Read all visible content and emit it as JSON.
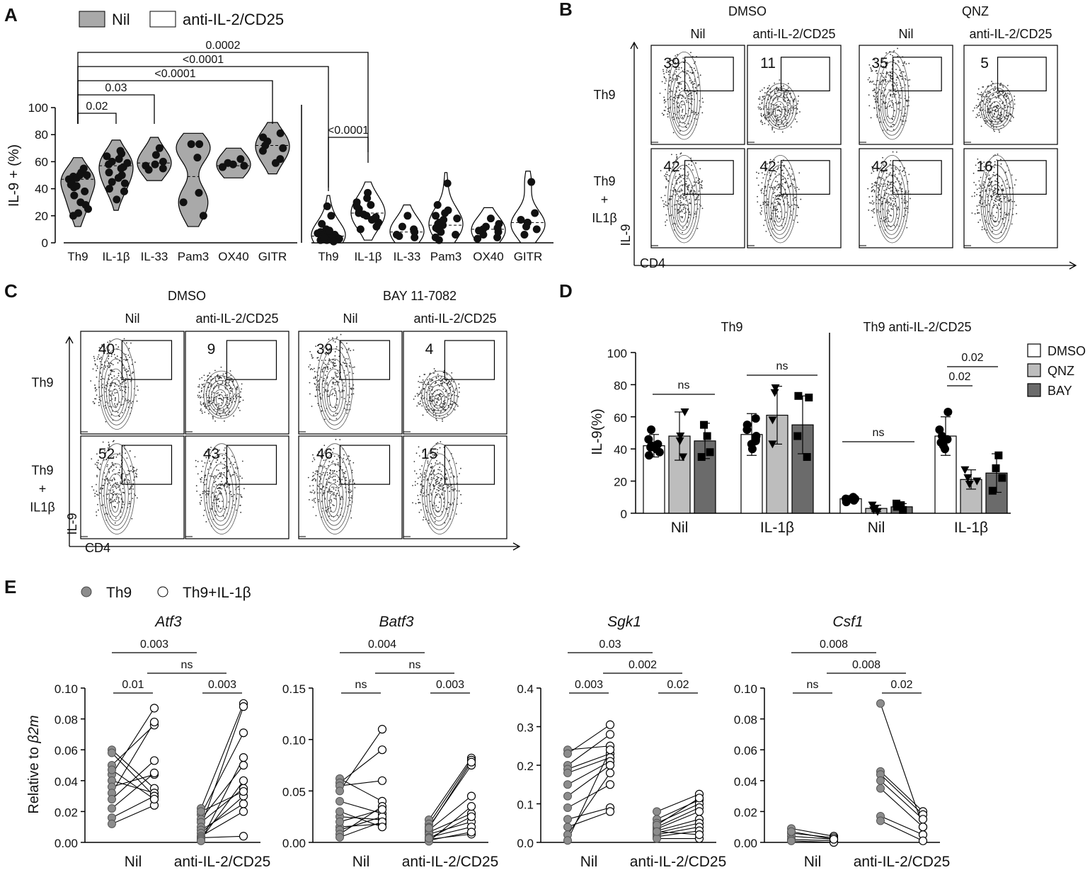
{
  "panels": {
    "A": {
      "label": "A",
      "legend": [
        {
          "name": "Nil",
          "fill": "#a9a9a9"
        },
        {
          "name": "anti-IL-2/CD25",
          "fill": "#ffffff"
        }
      ],
      "ylabel": "IL-9 + (%)",
      "ylim": [
        0,
        100
      ],
      "yticks": [
        "0",
        "20",
        "40",
        "60",
        "80",
        "100"
      ],
      "categories": [
        "Th9",
        "IL-1β",
        "IL-33",
        "Pam3",
        "OX40",
        "GITR"
      ]
    },
    "B": {
      "label": "B",
      "groups": [
        "DMSO",
        "QNZ"
      ],
      "columns": [
        "Nil",
        "anti-IL-2/CD25",
        "Nil",
        "anti-IL-2/CD25"
      ],
      "rows": [
        [
          "Th9"
        ],
        [
          "Th9",
          "+",
          "IL1β"
        ]
      ],
      "values": [
        [
          "39",
          "11",
          "35",
          "5"
        ],
        [
          "42",
          "42",
          "42",
          "16"
        ]
      ],
      "xaxis": "CD4",
      "yaxis": "IL-9"
    },
    "C": {
      "label": "C",
      "groups": [
        "DMSO",
        "BAY 11-7082"
      ],
      "columns": [
        "Nil",
        "anti-IL-2/CD25",
        "Nil",
        "anti-IL-2/CD25"
      ],
      "rows": [
        [
          "Th9"
        ],
        [
          "Th9",
          "+",
          "IL1β"
        ]
      ],
      "values": [
        [
          "40",
          "9",
          "39",
          "4"
        ],
        [
          "52",
          "43",
          "46",
          "15"
        ]
      ],
      "xaxis": "CD4",
      "yaxis": "IL-9"
    },
    "D": {
      "label": "D",
      "groups": [
        "Th9",
        "Th9 anti-IL-2/CD25"
      ],
      "ylabel": "IL-9(%)",
      "yticks": [
        "0",
        "20",
        "40",
        "60",
        "80",
        "100"
      ],
      "legend": [
        {
          "name": "DMSO",
          "fill": "#ffffff"
        },
        {
          "name": "QNZ",
          "fill": "#bdbdbd"
        },
        {
          "name": "BAY",
          "fill": "#6b6b6b"
        }
      ],
      "categories": [
        "Nil",
        "IL-1β",
        "Nil",
        "IL-1β"
      ]
    },
    "E": {
      "label": "E",
      "legend": [
        {
          "name": "Th9",
          "fill": "#8c8c8c"
        },
        {
          "name": "Th9+IL-1β",
          "fill": "#ffffff"
        }
      ],
      "ylabel": "Relative to β2m",
      "ylabel_plain": "Relative to ",
      "ylabel_italic": "β2m",
      "categories": [
        "Nil",
        "anti-IL-2/CD25"
      ]
    }
  },
  "chart_data": [
    {
      "id": "A",
      "type": "violin-scatter",
      "title": "",
      "ylabel": "IL-9 + (%)",
      "ylim": [
        0,
        100
      ],
      "series": [
        {
          "name": "Nil",
          "categories": [
            "Th9",
            "IL-1β",
            "IL-33",
            "Pam3",
            "OX40",
            "GITR"
          ],
          "median": [
            47,
            57,
            59,
            49,
            57,
            72
          ],
          "points": [
            [
              52,
              50,
              49,
              47,
              45,
              55,
              43,
              41,
              38,
              35,
              30,
              28,
              25,
              22,
              20,
              48,
              42,
              50
            ],
            [
              68,
              66,
              64,
              60,
              58,
              56,
              55,
              52,
              48,
              45,
              40,
              38,
              32,
              62,
              59,
              50,
              44
            ],
            [
              70,
              65,
              60,
              58,
              57,
              55,
              54
            ],
            [
              73,
              73,
              63,
              37,
              30,
              20
            ],
            [
              62,
              59,
              58,
              57,
              56,
              56
            ],
            [
              81,
              78,
              75,
              72,
              70,
              68,
              62,
              59
            ]
          ]
        },
        {
          "name": "anti-IL-2/CD25",
          "categories": [
            "Th9",
            "IL-1β",
            "IL-33",
            "Pam3",
            "OX40",
            "GITR"
          ],
          "median": [
            5,
            22,
            8,
            13,
            10,
            15
          ],
          "points": [
            [
              27,
              20,
              14,
              10,
              8,
              7,
              6,
              5,
              4,
              3,
              3,
              2,
              2,
              1,
              6,
              9,
              4
            ],
            [
              37,
              33,
              30,
              28,
              25,
              22,
              21,
              20,
              17,
              15,
              12,
              10,
              27,
              19
            ],
            [
              20,
              12,
              10,
              8,
              6,
              5,
              4
            ],
            [
              44,
              28,
              24,
              20,
              18,
              15,
              13,
              10,
              8,
              6,
              4,
              2,
              14,
              11,
              17,
              22
            ],
            [
              18,
              14,
              12,
              10,
              8,
              6,
              4,
              3,
              9,
              11
            ],
            [
              45,
              22,
              17,
              15,
              10,
              6,
              12
            ]
          ]
        }
      ],
      "comparisons": [
        {
          "from": "Th9 (Nil)",
          "to": "IL-1β (Nil)",
          "p": "0.02"
        },
        {
          "from": "Th9 (Nil)",
          "to": "IL-33 (Nil)",
          "p": "0.03"
        },
        {
          "from": "Th9 (Nil)",
          "to": "GITR (Nil)",
          "p": "<0.0001"
        },
        {
          "from": "Th9 (Nil)",
          "to": "Th9 (anti-IL-2/CD25)",
          "p": "<0.0001"
        },
        {
          "from": "Th9 (Nil)",
          "to": "IL-1β (anti-IL-2/CD25)",
          "p": "0.0002"
        },
        {
          "from": "Th9 (anti-IL-2/CD25)",
          "to": "IL-1β (anti-IL-2/CD25)",
          "p": "<0.0001"
        }
      ]
    },
    {
      "id": "D",
      "type": "bar",
      "ylabel": "IL-9(%)",
      "ylim": [
        0,
        100
      ],
      "categories": [
        "Th9 Nil",
        "Th9 IL-1β",
        "Th9 anti-IL-2/CD25 Nil",
        "Th9 anti-IL-2/CD25 IL-1β"
      ],
      "series": [
        {
          "name": "DMSO",
          "values": [
            42,
            49,
            9,
            48
          ],
          "sd": [
            7,
            13,
            2,
            12
          ],
          "points": [
            [
              52,
              46,
              43,
              42,
              40,
              38,
              36,
              41
            ],
            [
              59,
              55,
              52,
              48,
              46,
              45,
              43,
              40
            ],
            [
              10,
              9,
              8,
              8,
              7,
              9
            ],
            [
              63,
              52,
              48,
              46,
              44,
              42,
              40
            ]
          ]
        },
        {
          "name": "QNZ",
          "values": [
            48,
            61,
            3,
            21
          ],
          "sd": [
            15,
            18,
            2,
            6
          ],
          "points": [
            [
              63,
              48,
              45,
              35
            ],
            [
              78,
              75,
              58,
              43
            ],
            [
              5,
              3,
              2,
              1
            ],
            [
              27,
              22,
              20,
              18
            ]
          ]
        },
        {
          "name": "BAY",
          "values": [
            45,
            55,
            4,
            25
          ],
          "sd": [
            11,
            18,
            2,
            12
          ],
          "points": [
            [
              55,
              48,
              38,
              35
            ],
            [
              73,
              72,
              48,
              35
            ],
            [
              6,
              5,
              4,
              2
            ],
            [
              36,
              28,
              22,
              14
            ]
          ]
        }
      ],
      "comparisons": [
        {
          "group": "Th9 Nil",
          "p": "ns"
        },
        {
          "group": "Th9 IL-1β",
          "p": "ns"
        },
        {
          "group": "Th9 anti-IL-2/CD25 Nil",
          "p": "ns"
        },
        {
          "group": "Th9 anti-IL-2/CD25 IL-1β",
          "pair": "DMSO vs QNZ",
          "p": "0.02"
        },
        {
          "group": "Th9 anti-IL-2/CD25 IL-1β",
          "pair": "DMSO vs BAY",
          "p": "0.02"
        }
      ]
    },
    {
      "id": "E1",
      "type": "paired-line",
      "title": "Atf3",
      "ylim": [
        0,
        0.1
      ],
      "yticks": [
        "0.00",
        "0.02",
        "0.04",
        "0.06",
        "0.08",
        "0.10"
      ],
      "categories": [
        "Nil",
        "anti-IL-2/CD25"
      ],
      "pairs": [
        [
          [
            0.06,
            0.035
          ],
          [
            0.058,
            0.03
          ],
          [
            0.05,
            0.076
          ],
          [
            0.044,
            0.087
          ],
          [
            0.04,
            0.032
          ],
          [
            0.036,
            0.044
          ],
          [
            0.032,
            0.078
          ],
          [
            0.028,
            0.053
          ],
          [
            0.022,
            0.045
          ],
          [
            0.016,
            0.03
          ],
          [
            0.012,
            0.024
          ],
          [
            0.047,
            0.028
          ]
        ],
        [
          [
            0.022,
            0.09
          ],
          [
            0.018,
            0.071
          ],
          [
            0.015,
            0.05
          ],
          [
            0.013,
            0.035
          ],
          [
            0.01,
            0.088
          ],
          [
            0.008,
            0.025
          ],
          [
            0.006,
            0.03
          ],
          [
            0.004,
            0.02
          ],
          [
            0.003,
            0.004
          ],
          [
            0.002,
            0.04
          ],
          [
            0.001,
            0.055
          ],
          [
            0.02,
            0.033
          ]
        ]
      ],
      "comparisons": [
        {
          "label": "Nil",
          "p": "0.01"
        },
        {
          "label": "anti-IL-2/CD25",
          "p": "0.003"
        },
        {
          "label": "Th9 Nil vs Th9 anti",
          "p": "0.003"
        },
        {
          "label": "IL-1β Nil vs IL-1β anti",
          "p": "ns"
        }
      ]
    },
    {
      "id": "E2",
      "type": "paired-line",
      "title": "Batf3",
      "ylim": [
        0,
        0.15
      ],
      "yticks": [
        "0.00",
        "0.05",
        "0.10",
        "0.15"
      ],
      "categories": [
        "Nil",
        "anti-IL-2/CD25"
      ],
      "pairs": [
        [
          [
            0.062,
            0.04
          ],
          [
            0.058,
            0.09
          ],
          [
            0.055,
            0.06
          ],
          [
            0.05,
            0.11
          ],
          [
            0.04,
            0.028
          ],
          [
            0.025,
            0.022
          ],
          [
            0.015,
            0.018
          ],
          [
            0.012,
            0.025
          ],
          [
            0.008,
            0.035
          ],
          [
            0.005,
            0.02
          ],
          [
            0.02,
            0.032
          ],
          [
            0.03,
            0.015
          ]
        ],
        [
          [
            0.022,
            0.082
          ],
          [
            0.018,
            0.08
          ],
          [
            0.015,
            0.075
          ],
          [
            0.012,
            0.045
          ],
          [
            0.01,
            0.028
          ],
          [
            0.008,
            0.02
          ],
          [
            0.005,
            0.015
          ],
          [
            0.003,
            0.008
          ],
          [
            0.002,
            0.01
          ],
          [
            0.001,
            0.035
          ],
          [
            0.014,
            0.078
          ],
          [
            0.004,
            0.025
          ]
        ]
      ],
      "comparisons": [
        {
          "label": "Nil",
          "p": "ns"
        },
        {
          "label": "anti-IL-2/CD25",
          "p": "0.003"
        },
        {
          "label": "Th9 Nil vs Th9 anti",
          "p": "0.004"
        },
        {
          "label": "IL-1β Nil vs IL-1β anti",
          "p": "ns"
        }
      ]
    },
    {
      "id": "E3",
      "type": "paired-line",
      "title": "Sgk1",
      "ylim": [
        0,
        0.4
      ],
      "yticks": [
        "0.0",
        "0.1",
        "0.2",
        "0.3",
        "0.4"
      ],
      "categories": [
        "Nil",
        "anti-IL-2/CD25"
      ],
      "pairs": [
        [
          [
            0.24,
            0.25
          ],
          [
            0.23,
            0.305
          ],
          [
            0.2,
            0.28
          ],
          [
            0.19,
            0.23
          ],
          [
            0.18,
            0.22
          ],
          [
            0.15,
            0.21
          ],
          [
            0.12,
            0.2
          ],
          [
            0.09,
            0.15
          ],
          [
            0.06,
            0.09
          ],
          [
            0.04,
            0.08
          ],
          [
            0.02,
            0.18
          ],
          [
            0.005,
            0.24
          ]
        ],
        [
          [
            0.08,
            0.125
          ],
          [
            0.06,
            0.11
          ],
          [
            0.05,
            0.1
          ],
          [
            0.04,
            0.09
          ],
          [
            0.035,
            0.08
          ],
          [
            0.03,
            0.06
          ],
          [
            0.025,
            0.05
          ],
          [
            0.02,
            0.04
          ],
          [
            0.015,
            0.03
          ],
          [
            0.01,
            0.01
          ],
          [
            0.045,
            0.115
          ],
          [
            0.028,
            0.02
          ]
        ]
      ],
      "comparisons": [
        {
          "label": "Nil",
          "p": "0.003"
        },
        {
          "label": "anti-IL-2/CD25",
          "p": "0.02"
        },
        {
          "label": "Th9 Nil vs Th9 anti",
          "p": "0.03"
        },
        {
          "label": "IL-1β Nil vs IL-1β anti",
          "p": "0.002"
        }
      ]
    },
    {
      "id": "E4",
      "type": "paired-line",
      "title": "Csf1",
      "ylim": [
        0,
        0.1
      ],
      "yticks": [
        "0.00",
        "0.02",
        "0.04",
        "0.06",
        "0.08",
        "0.10"
      ],
      "categories": [
        "Nil",
        "anti-IL-2/CD25"
      ],
      "pairs": [
        [
          [
            0.009,
            0.004
          ],
          [
            0.006,
            0.003
          ],
          [
            0.004,
            0.002
          ],
          [
            0.002,
            0.001
          ],
          [
            0.001,
            0.0
          ],
          [
            0.007,
            0.002
          ]
        ],
        [
          [
            0.09,
            0.01
          ],
          [
            0.046,
            0.02
          ],
          [
            0.044,
            0.018
          ],
          [
            0.04,
            0.015
          ],
          [
            0.035,
            0.01
          ],
          [
            0.017,
            0.005
          ],
          [
            0.014,
            0.001
          ]
        ]
      ],
      "comparisons": [
        {
          "label": "Nil",
          "p": "ns"
        },
        {
          "label": "anti-IL-2/CD25",
          "p": "0.02"
        },
        {
          "label": "Th9 Nil vs Th9 anti",
          "p": "0.008"
        },
        {
          "label": "IL-1β Nil vs IL-1β anti",
          "p": "0.008"
        }
      ]
    }
  ]
}
